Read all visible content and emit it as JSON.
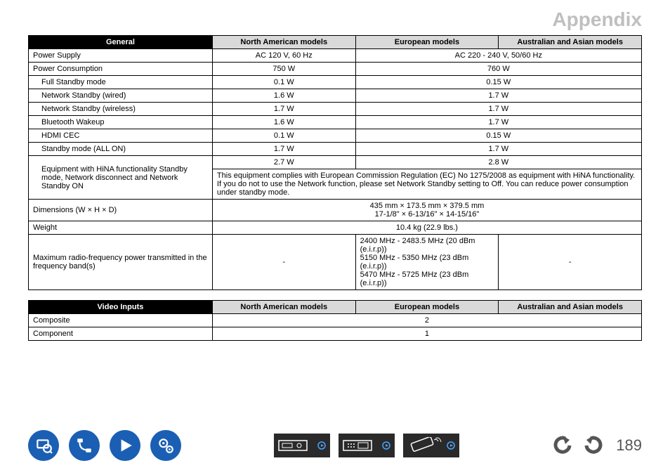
{
  "title": "Appendix",
  "table_general": {
    "section_header": "General",
    "columns": [
      "North American models",
      "European models",
      "Australian and Asian models"
    ],
    "rows": [
      {
        "label": "Power Supply",
        "indent": 0,
        "cells": [
          {
            "span": 1,
            "val": "AC 120 V, 60 Hz"
          },
          {
            "span": 2,
            "val": "AC 220 - 240 V, 50/60 Hz"
          }
        ]
      },
      {
        "label": "Power Consumption",
        "indent": 0,
        "cells": [
          {
            "span": 1,
            "val": "750 W"
          },
          {
            "span": 2,
            "val": "760 W"
          }
        ]
      },
      {
        "label": "Full Standby mode",
        "indent": 1,
        "cells": [
          {
            "span": 1,
            "val": "0.1 W"
          },
          {
            "span": 2,
            "val": "0.15 W"
          }
        ]
      },
      {
        "label": "Network Standby (wired)",
        "indent": 1,
        "cells": [
          {
            "span": 1,
            "val": "1.6 W"
          },
          {
            "span": 2,
            "val": "1.7 W"
          }
        ]
      },
      {
        "label": "Network Standby (wireless)",
        "indent": 1,
        "cells": [
          {
            "span": 1,
            "val": "1.7 W"
          },
          {
            "span": 2,
            "val": "1.7 W"
          }
        ]
      },
      {
        "label": "Bluetooth Wakeup",
        "indent": 1,
        "cells": [
          {
            "span": 1,
            "val": "1.6 W"
          },
          {
            "span": 2,
            "val": "1.7 W"
          }
        ]
      },
      {
        "label": "HDMI CEC",
        "indent": 1,
        "cells": [
          {
            "span": 1,
            "val": "0.1 W"
          },
          {
            "span": 2,
            "val": "0.15 W"
          }
        ]
      },
      {
        "label": "Standby mode (ALL ON)",
        "indent": 1,
        "cells": [
          {
            "span": 1,
            "val": "1.7 W"
          },
          {
            "span": 2,
            "val": "1.7 W"
          }
        ]
      }
    ],
    "hina_row": {
      "label": "Equipment with HiNA functionality Standby mode, Network disconnect and Network Standby ON",
      "top_cells": [
        {
          "span": 1,
          "val": "2.7 W"
        },
        {
          "span": 2,
          "val": "2.8 W"
        }
      ],
      "footnote": "This equipment complies with European Commission Regulation (EC) No 1275/2008 as equipment with HiNA functionality. If you do not to use the Network function, please set Network Standby setting to Off. You can reduce power consumption under standby mode."
    },
    "dimensions": {
      "label": "Dimensions (W × H × D)",
      "line1": "435 mm × 173.5 mm × 379.5 mm",
      "line2": "17-1/8\" × 6-13/16\" × 14-15/16\""
    },
    "weight": {
      "label": "Weight",
      "val": "10.4 kg (22.9 lbs.)"
    },
    "radio": {
      "label": "Maximum radio-frequency power transmitted in the frequency band(s)",
      "na": "-",
      "eu": "2400 MHz - 2483.5 MHz (20 dBm (e.i.r.p))\n5150 MHz - 5350 MHz (23 dBm (e.i.r.p))\n5470 MHz - 5725 MHz (23 dBm (e.i.r.p))",
      "au": "-"
    }
  },
  "table_video": {
    "section_header": "Video Inputs",
    "columns": [
      "North American models",
      "European models",
      "Australian and Asian models"
    ],
    "rows": [
      {
        "label": "Composite",
        "cells": [
          {
            "span": 3,
            "val": "2"
          }
        ]
      },
      {
        "label": "Component",
        "cells": [
          {
            "span": 3,
            "val": "1"
          }
        ]
      }
    ]
  },
  "footer": {
    "page_number": "189",
    "nav_icons": [
      "manual-icon",
      "cable-icon",
      "play-icon",
      "gear-icon"
    ],
    "center_icons": [
      "front-panel-icon",
      "rear-panel-icon",
      "remote-icon"
    ],
    "arrows": [
      "back-arrow-icon",
      "forward-arrow-icon"
    ]
  },
  "colors": {
    "brand_blue": "#1a5fb4",
    "header_black": "#000000",
    "header_gray": "#d9d9d9",
    "title_gray": "#bfbfbf",
    "page_num_gray": "#555555",
    "rect_bg": "#2a2a2a"
  }
}
